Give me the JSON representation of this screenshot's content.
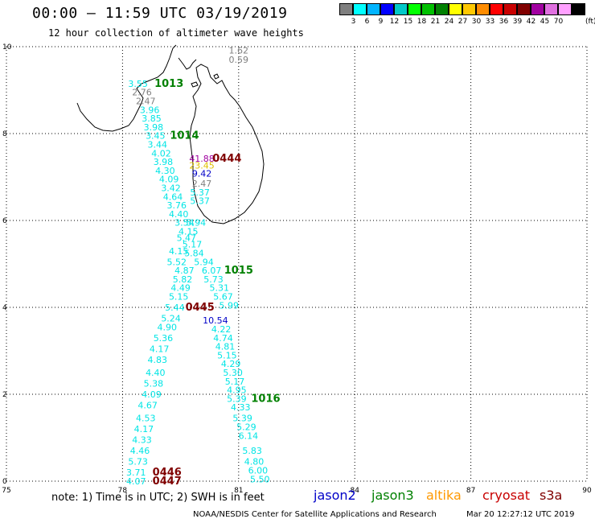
{
  "header": {
    "title": "00:00 – 11:59 UTC 03/19/2019",
    "subtitle": "12 hour collection of altimeter wave heights"
  },
  "colorbar": {
    "unit_label": "(ft)",
    "swatches": [
      {
        "color": "#7f7f7f",
        "label": ""
      },
      {
        "color": "#00ffff",
        "label": "3"
      },
      {
        "color": "#00b4ff",
        "label": "6"
      },
      {
        "color": "#0000ff",
        "label": "9"
      },
      {
        "color": "#00c8c8",
        "label": "12"
      },
      {
        "color": "#00ff00",
        "label": "15"
      },
      {
        "color": "#00c000",
        "label": "18"
      },
      {
        "color": "#008000",
        "label": "21"
      },
      {
        "color": "#ffff00",
        "label": "24"
      },
      {
        "color": "#ffc800",
        "label": "27"
      },
      {
        "color": "#ff8c00",
        "label": "30"
      },
      {
        "color": "#ff0000",
        "label": "33"
      },
      {
        "color": "#c80000",
        "label": "36"
      },
      {
        "color": "#800000",
        "label": "39"
      },
      {
        "color": "#a000a0",
        "label": "42"
      },
      {
        "color": "#e070e0",
        "label": "45"
      },
      {
        "color": "#ffa0ff",
        "label": "70"
      },
      {
        "color": "#000000",
        "label": ""
      }
    ]
  },
  "map": {
    "lon_ticks": [
      "75",
      "78",
      "81",
      "84",
      "87",
      "90"
    ],
    "lat_ticks": [
      "0",
      "2",
      "4",
      "6",
      "8",
      "10"
    ],
    "colors": {
      "cyan": "#00e5e5",
      "gray": "#808080",
      "green": "#008000",
      "maroon": "#800000",
      "blue": "#0000c8",
      "magenta": "#a000a0",
      "yellow": "#e0c000"
    },
    "labels": [
      {
        "text": "1.62",
        "lon": 81.0,
        "lat": 9.92,
        "color": "gray"
      },
      {
        "text": "0.59",
        "lon": 81.0,
        "lat": 9.7,
        "color": "gray"
      },
      {
        "text": "3.55",
        "lon": 78.4,
        "lat": 9.15,
        "color": "cyan"
      },
      {
        "text": "1013",
        "lon": 79.2,
        "lat": 9.15,
        "color": "green",
        "big": true
      },
      {
        "text": "2.76",
        "lon": 78.5,
        "lat": 8.95,
        "color": "gray"
      },
      {
        "text": "2.47",
        "lon": 78.6,
        "lat": 8.75,
        "color": "gray"
      },
      {
        "text": "3.96",
        "lon": 78.7,
        "lat": 8.55,
        "color": "cyan"
      },
      {
        "text": "3.85",
        "lon": 78.75,
        "lat": 8.35,
        "color": "cyan"
      },
      {
        "text": "3.98",
        "lon": 78.8,
        "lat": 8.15,
        "color": "cyan"
      },
      {
        "text": "3.45",
        "lon": 78.85,
        "lat": 7.95,
        "color": "cyan"
      },
      {
        "text": "1014",
        "lon": 79.6,
        "lat": 7.95,
        "color": "green",
        "big": true
      },
      {
        "text": "3.44",
        "lon": 78.9,
        "lat": 7.75,
        "color": "cyan"
      },
      {
        "text": "4.02",
        "lon": 79.0,
        "lat": 7.55,
        "color": "cyan"
      },
      {
        "text": "3.98",
        "lon": 79.05,
        "lat": 7.35,
        "color": "cyan"
      },
      {
        "text": "41.88",
        "lon": 80.05,
        "lat": 7.43,
        "color": "magenta"
      },
      {
        "text": "0444",
        "lon": 80.7,
        "lat": 7.43,
        "color": "maroon",
        "big": true
      },
      {
        "text": "23.45",
        "lon": 80.05,
        "lat": 7.27,
        "color": "yellow"
      },
      {
        "text": "4.30",
        "lon": 79.1,
        "lat": 7.15,
        "color": "cyan"
      },
      {
        "text": "9.42",
        "lon": 80.05,
        "lat": 7.08,
        "color": "blue"
      },
      {
        "text": "4.09",
        "lon": 79.2,
        "lat": 6.95,
        "color": "cyan"
      },
      {
        "text": "2.47",
        "lon": 80.05,
        "lat": 6.85,
        "color": "gray"
      },
      {
        "text": "3.42",
        "lon": 79.25,
        "lat": 6.75,
        "color": "cyan"
      },
      {
        "text": "5.37",
        "lon": 80.0,
        "lat": 6.65,
        "color": "cyan"
      },
      {
        "text": "4.64",
        "lon": 79.3,
        "lat": 6.55,
        "color": "cyan"
      },
      {
        "text": "5.37",
        "lon": 80.0,
        "lat": 6.45,
        "color": "cyan"
      },
      {
        "text": "3.76",
        "lon": 79.4,
        "lat": 6.35,
        "color": "cyan"
      },
      {
        "text": "4.40",
        "lon": 79.45,
        "lat": 6.15,
        "color": "cyan"
      },
      {
        "text": "3.54",
        "lon": 79.6,
        "lat": 5.95,
        "color": "cyan"
      },
      {
        "text": "5.94",
        "lon": 79.9,
        "lat": 5.95,
        "color": "cyan"
      },
      {
        "text": "4.15",
        "lon": 79.7,
        "lat": 5.75,
        "color": "cyan"
      },
      {
        "text": "5.47",
        "lon": 79.65,
        "lat": 5.6,
        "color": "cyan"
      },
      {
        "text": "5.17",
        "lon": 79.8,
        "lat": 5.45,
        "color": "cyan"
      },
      {
        "text": "4.15",
        "lon": 79.45,
        "lat": 5.3,
        "color": "cyan"
      },
      {
        "text": "5.84",
        "lon": 79.85,
        "lat": 5.25,
        "color": "cyan"
      },
      {
        "text": "5.52",
        "lon": 79.4,
        "lat": 5.05,
        "color": "cyan"
      },
      {
        "text": "5.94",
        "lon": 80.1,
        "lat": 5.05,
        "color": "cyan"
      },
      {
        "text": "4.87",
        "lon": 79.6,
        "lat": 4.85,
        "color": "cyan"
      },
      {
        "text": "6.07",
        "lon": 80.3,
        "lat": 4.85,
        "color": "cyan"
      },
      {
        "text": "1015",
        "lon": 81.0,
        "lat": 4.85,
        "color": "green",
        "big": true
      },
      {
        "text": "5.82",
        "lon": 79.55,
        "lat": 4.65,
        "color": "cyan"
      },
      {
        "text": "5.73",
        "lon": 80.35,
        "lat": 4.65,
        "color": "cyan"
      },
      {
        "text": "4.49",
        "lon": 79.5,
        "lat": 4.45,
        "color": "cyan"
      },
      {
        "text": "5.31",
        "lon": 80.5,
        "lat": 4.45,
        "color": "cyan"
      },
      {
        "text": "5.15",
        "lon": 79.45,
        "lat": 4.25,
        "color": "cyan"
      },
      {
        "text": "5.67",
        "lon": 80.6,
        "lat": 4.25,
        "color": "cyan"
      },
      {
        "text": "5.44",
        "lon": 79.35,
        "lat": 4.0,
        "color": "cyan"
      },
      {
        "text": "0445",
        "lon": 80.0,
        "lat": 4.0,
        "color": "maroon",
        "big": true
      },
      {
        "text": "5.99",
        "lon": 80.75,
        "lat": 4.05,
        "color": "cyan"
      },
      {
        "text": "5.24",
        "lon": 79.25,
        "lat": 3.75,
        "color": "cyan"
      },
      {
        "text": "10.54",
        "lon": 80.4,
        "lat": 3.7,
        "color": "blue"
      },
      {
        "text": "4.90",
        "lon": 79.15,
        "lat": 3.55,
        "color": "cyan"
      },
      {
        "text": "4.22",
        "lon": 80.55,
        "lat": 3.5,
        "color": "cyan"
      },
      {
        "text": "5.36",
        "lon": 79.05,
        "lat": 3.3,
        "color": "cyan"
      },
      {
        "text": "4.74",
        "lon": 80.6,
        "lat": 3.3,
        "color": "cyan"
      },
      {
        "text": "4.17",
        "lon": 78.95,
        "lat": 3.05,
        "color": "cyan"
      },
      {
        "text": "4.81",
        "lon": 80.65,
        "lat": 3.1,
        "color": "cyan"
      },
      {
        "text": "5.15",
        "lon": 80.7,
        "lat": 2.9,
        "color": "cyan"
      },
      {
        "text": "4.83",
        "lon": 78.9,
        "lat": 2.8,
        "color": "cyan"
      },
      {
        "text": "4.29",
        "lon": 80.8,
        "lat": 2.7,
        "color": "cyan"
      },
      {
        "text": "4.40",
        "lon": 78.85,
        "lat": 2.5,
        "color": "cyan"
      },
      {
        "text": "5.30",
        "lon": 80.85,
        "lat": 2.5,
        "color": "cyan"
      },
      {
        "text": "5.38",
        "lon": 78.8,
        "lat": 2.25,
        "color": "cyan"
      },
      {
        "text": "5.17",
        "lon": 80.9,
        "lat": 2.3,
        "color": "cyan"
      },
      {
        "text": "4.09",
        "lon": 78.75,
        "lat": 2.0,
        "color": "cyan"
      },
      {
        "text": "4.95",
        "lon": 80.95,
        "lat": 2.1,
        "color": "cyan"
      },
      {
        "text": "5.39",
        "lon": 80.95,
        "lat": 1.9,
        "color": "cyan"
      },
      {
        "text": "1016",
        "lon": 81.7,
        "lat": 1.9,
        "color": "green",
        "big": true
      },
      {
        "text": "4.67",
        "lon": 78.65,
        "lat": 1.75,
        "color": "cyan"
      },
      {
        "text": "4.33",
        "lon": 81.05,
        "lat": 1.7,
        "color": "cyan"
      },
      {
        "text": "4.53",
        "lon": 78.6,
        "lat": 1.45,
        "color": "cyan"
      },
      {
        "text": "5.39",
        "lon": 81.1,
        "lat": 1.45,
        "color": "cyan"
      },
      {
        "text": "4.17",
        "lon": 78.55,
        "lat": 1.2,
        "color": "cyan"
      },
      {
        "text": "5.29",
        "lon": 81.2,
        "lat": 1.25,
        "color": "cyan"
      },
      {
        "text": "4.33",
        "lon": 78.5,
        "lat": 0.95,
        "color": "cyan"
      },
      {
        "text": "6.14",
        "lon": 81.25,
        "lat": 1.05,
        "color": "cyan"
      },
      {
        "text": "4.46",
        "lon": 78.45,
        "lat": 0.7,
        "color": "cyan"
      },
      {
        "text": "5.83",
        "lon": 81.35,
        "lat": 0.7,
        "color": "cyan"
      },
      {
        "text": "5.73",
        "lon": 78.4,
        "lat": 0.45,
        "color": "cyan"
      },
      {
        "text": "4.80",
        "lon": 81.4,
        "lat": 0.45,
        "color": "cyan"
      },
      {
        "text": "3.71",
        "lon": 78.35,
        "lat": 0.2,
        "color": "cyan"
      },
      {
        "text": "0446",
        "lon": 79.15,
        "lat": 0.2,
        "color": "maroon",
        "big": true
      },
      {
        "text": "6.00",
        "lon": 81.5,
        "lat": 0.25,
        "color": "cyan"
      },
      {
        "text": "4.07",
        "lon": 78.35,
        "lat": 0.0,
        "color": "cyan"
      },
      {
        "text": "0447",
        "lon": 79.15,
        "lat": 0.0,
        "color": "maroon",
        "big": true
      },
      {
        "text": "5.50",
        "lon": 81.55,
        "lat": 0.05,
        "color": "cyan"
      }
    ]
  },
  "footer": {
    "note": "note: 1) Time is in UTC; 2) SWH is in feet",
    "satellites": [
      {
        "name": "jason2",
        "color": "#0000c8"
      },
      {
        "name": "jason3",
        "color": "#008000"
      },
      {
        "name": "altika",
        "color": "#ff9900"
      },
      {
        "name": "cryosat",
        "color": "#c80000"
      },
      {
        "name": "s3a",
        "color": "#800000"
      }
    ],
    "credit": "NOAA/NESDIS Center for Satellite Applications and Research",
    "timestamp": "Mar 20 12:27:12 UTC 2019"
  }
}
